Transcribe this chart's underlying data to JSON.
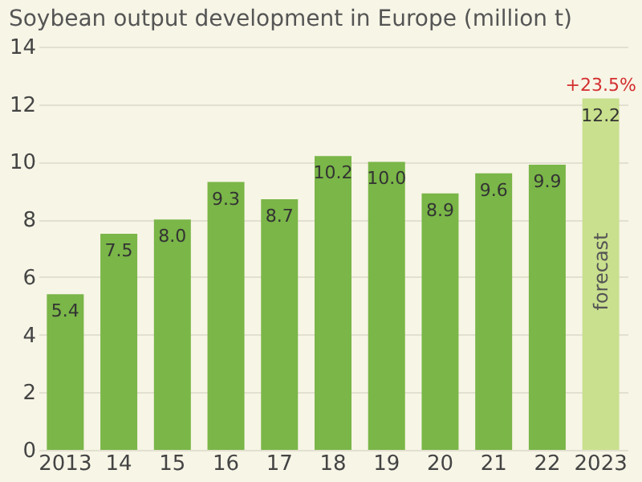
{
  "chart_data": {
    "type": "bar",
    "title": "Soybean output development in Europe (million t)",
    "categories": [
      "2013",
      "14",
      "15",
      "16",
      "17",
      "18",
      "19",
      "20",
      "21",
      "22",
      "2023"
    ],
    "values": [
      5.4,
      7.5,
      8.0,
      9.3,
      8.7,
      10.2,
      10.0,
      8.9,
      9.6,
      9.9,
      12.2
    ],
    "colors": [
      "#7ab648",
      "#7ab648",
      "#7ab648",
      "#7ab648",
      "#7ab648",
      "#7ab648",
      "#7ab648",
      "#7ab648",
      "#7ab648",
      "#7ab648",
      "#c9e08e"
    ],
    "value_labels": [
      "5.4",
      "7.5",
      "8.0",
      "9.3",
      "8.7",
      "10.2",
      "10.0",
      "8.9",
      "9.6",
      "9.9",
      "12.2"
    ],
    "ylim": [
      0,
      14
    ],
    "yticks": [
      0,
      2,
      4,
      6,
      8,
      10,
      12,
      14
    ],
    "grid": "y",
    "annotations": [
      {
        "text": "+23.5%",
        "x": "2023",
        "y": 12.2
      },
      "forecast"
    ]
  }
}
